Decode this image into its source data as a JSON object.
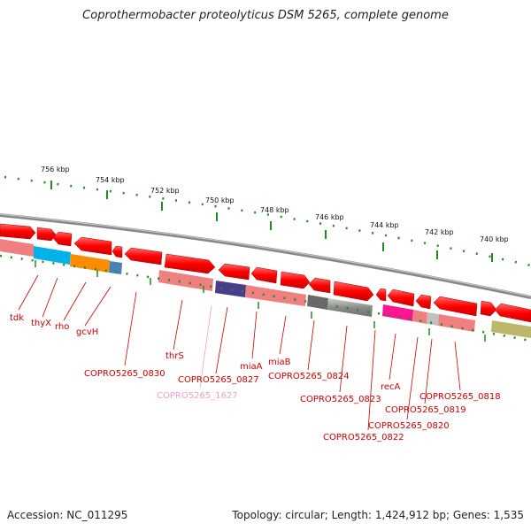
{
  "title": "Coprothermobacter proteolyticus DSM 5265, complete genome",
  "accession": "Accession: NC_011295",
  "summary": "Topology: circular; Length: 1,424,912 bp; Genes: 1,535",
  "scale_labels": [
    "756 kbp",
    "754 kbp",
    "752 kbp",
    "750 kbp",
    "748 kbp",
    "746 kbp",
    "744 kbp",
    "742 kbp",
    "740 kbp"
  ],
  "gene_labels": [
    "tdk",
    "thyX",
    "rho",
    "gcvH",
    "COPRO5265_0830",
    "thrS",
    "COPRO5265_1627",
    "COPRO5265_0827",
    "miaA",
    "miaB",
    "COPRO5265_0824",
    "COPRO5265_0823",
    "COPRO5265_0822",
    "recA",
    "COPRO5265_0820",
    "COPRO5265_0819",
    "COPRO5265_0818"
  ],
  "colors": {
    "gene_forward": "#ff0000",
    "track": "#f08080",
    "backbone": "#888888",
    "tick": "#228b22",
    "label": "#cc0000",
    "label_pseudo": "#f4a0c8"
  }
}
